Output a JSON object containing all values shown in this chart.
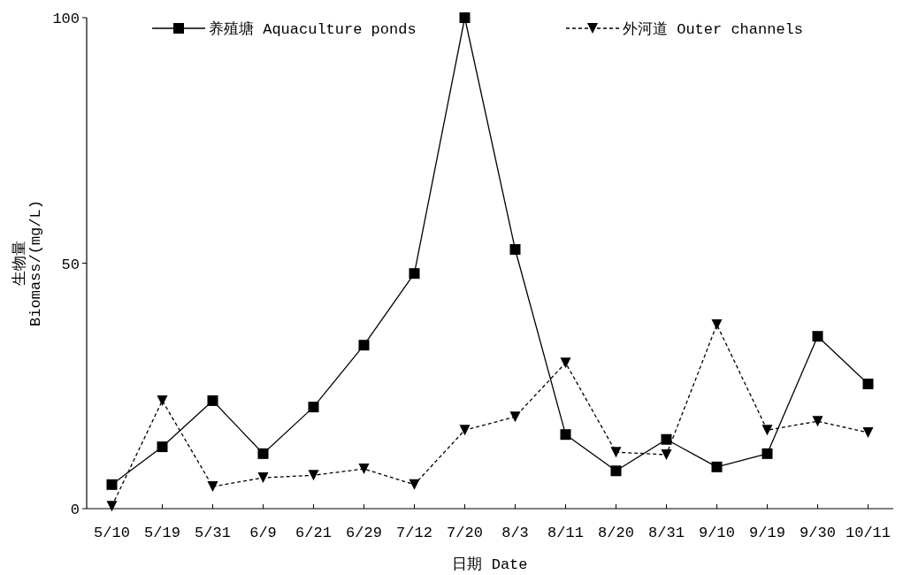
{
  "chart_data": {
    "type": "line",
    "xlabel": "日期 Date",
    "ylabel": "生物量\nBiomass/(mg/L)",
    "categories": [
      "5/10",
      "5/19",
      "5/31",
      "6/9",
      "6/21",
      "6/29",
      "7/12",
      "7/20",
      "8/3",
      "8/11",
      "8/20",
      "8/31",
      "9/10",
      "9/19",
      "9/30",
      "10/11"
    ],
    "series": [
      {
        "name": "养殖塘 Aquaculture ponds",
        "color": "#000000",
        "marker": "square",
        "line_style": "solid",
        "values": [
          4.9,
          12.6,
          22.0,
          11.2,
          20.7,
          33.3,
          47.9,
          100,
          52.8,
          15.1,
          7.7,
          14.1,
          8.5,
          11.2,
          35.1,
          25.4
        ]
      },
      {
        "name": "外河道 Outer channels",
        "color": "#000000",
        "marker": "triangle",
        "line_style": "dashed",
        "values": [
          0.5,
          22.0,
          4.5,
          6.3,
          6.8,
          8.1,
          4.9,
          16.0,
          18.7,
          29.7,
          11.5,
          11.0,
          37.5,
          16.0,
          17.8,
          15.5
        ]
      }
    ],
    "ylim": [
      0,
      100
    ],
    "yticks": [
      0,
      50,
      100
    ],
    "grid": false,
    "legend": "top"
  }
}
